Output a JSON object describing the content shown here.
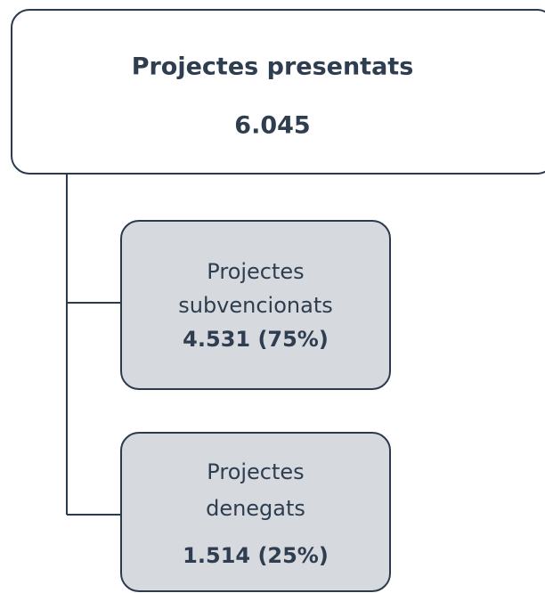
{
  "root": {
    "title": "Projectes presentats",
    "value": "6.045"
  },
  "children": [
    {
      "label_lines": [
        "Projectes",
        "subvencionats"
      ],
      "value": "4.531 (75%)"
    },
    {
      "label_lines": [
        "Projectes",
        "denegats"
      ],
      "value": "1.514 (25%)"
    }
  ]
}
